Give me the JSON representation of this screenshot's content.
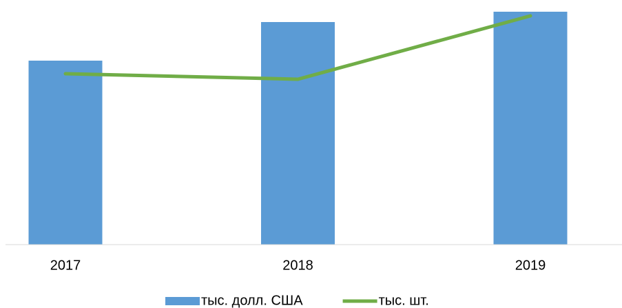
{
  "chart_data": {
    "type": "bar_line",
    "categories": [
      "2017",
      "2018",
      "2019"
    ],
    "series": [
      {
        "name": "тыс. долл. США",
        "type": "bar",
        "color": "#5b9bd5",
        "values": [
          267,
          323,
          338
        ]
      },
      {
        "name": "тыс. шт.",
        "type": "line",
        "color": "#70ad47",
        "values": [
          248,
          240,
          332
        ]
      }
    ],
    "ylim": [
      0,
      340
    ]
  }
}
